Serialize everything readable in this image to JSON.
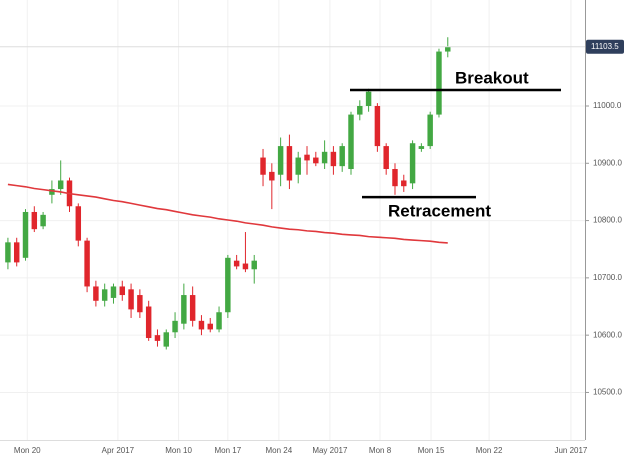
{
  "chart_data": {
    "type": "candlestick",
    "up_color": "#43a843",
    "down_color": "#e0262c",
    "open": [
      10727,
      10762,
      10735,
      10815,
      10790,
      10845,
      10855,
      10870,
      10825,
      10765,
      10685,
      10660,
      10665,
      10685,
      10680,
      10670,
      10650,
      10600,
      10580,
      10605,
      10620,
      10670,
      10625,
      10620,
      10610,
      10640,
      10730,
      10725,
      10715,
      10910,
      10885,
      10880,
      10930,
      10880,
      10915,
      10910,
      10900,
      10920,
      10895,
      10890,
      10985,
      11000,
      11000,
      10930,
      10890,
      10870,
      10865,
      10925,
      10930,
      10985,
      11095
    ],
    "high": [
      10770,
      10770,
      10820,
      10825,
      10815,
      10870,
      10905,
      10875,
      10830,
      10770,
      10695,
      10690,
      10690,
      10695,
      10690,
      10680,
      10660,
      10610,
      10610,
      10640,
      10690,
      10685,
      10635,
      10630,
      10650,
      10740,
      10740,
      10780,
      10740,
      10925,
      10900,
      10945,
      10950,
      10920,
      10930,
      10920,
      10940,
      10930,
      10935,
      10990,
      11010,
      11030,
      11005,
      10935,
      10900,
      10880,
      10940,
      10935,
      10990,
      11100,
      11120
    ],
    "low": [
      10715,
      10720,
      10730,
      10780,
      10785,
      10830,
      10845,
      10815,
      10755,
      10675,
      10650,
      10650,
      10655,
      10660,
      10630,
      10630,
      10590,
      10580,
      10575,
      10595,
      10610,
      10615,
      10600,
      10605,
      10605,
      10630,
      10715,
      10710,
      10690,
      10860,
      10820,
      10860,
      10855,
      10865,
      10880,
      10895,
      10890,
      10880,
      10885,
      10880,
      10975,
      10990,
      10920,
      10880,
      10845,
      10850,
      10855,
      10920,
      10925,
      10980,
      11085
    ],
    "close": [
      10762,
      10727,
      10815,
      10785,
      10810,
      10855,
      10870,
      10825,
      10765,
      10685,
      10660,
      10680,
      10685,
      10670,
      10645,
      10640,
      10595,
      10590,
      10605,
      10625,
      10670,
      10625,
      10610,
      10610,
      10640,
      10735,
      10720,
      10715,
      10730,
      10880,
      10870,
      10930,
      10870,
      10910,
      10905,
      10900,
      10920,
      10895,
      10930,
      10985,
      11000,
      11025,
      10930,
      10890,
      10860,
      10860,
      10935,
      10930,
      10985,
      11095,
      11103.5
    ],
    "moving_average": {
      "color": "#e0383c",
      "values": [
        10863,
        10861,
        10859,
        10856,
        10854,
        10852,
        10850,
        10847,
        10845,
        10843,
        10841,
        10838,
        10835,
        10833,
        10830,
        10827,
        10824,
        10821,
        10819,
        10816,
        10813,
        10810,
        10808,
        10806,
        10803,
        10801,
        10799,
        10796,
        10794,
        10792,
        10789,
        10787,
        10785,
        10784,
        10782,
        10781,
        10779,
        10778,
        10776,
        10775,
        10774,
        10772,
        10771,
        10770,
        10769,
        10767,
        10766,
        10765,
        10764,
        10762,
        10761
      ]
    },
    "xlim": [
      -0.9,
      65.6
    ],
    "xticks": [
      {
        "value": 2.2,
        "label": "Mon 20"
      },
      {
        "value": 12.5,
        "label": "Apr 2017"
      },
      {
        "value": 19.4,
        "label": "Mon 10"
      },
      {
        "value": 25,
        "label": "Mon 17"
      },
      {
        "value": 30.8,
        "label": "Mon 24"
      },
      {
        "value": 36.6,
        "label": "May 2017"
      },
      {
        "value": 42.3,
        "label": "Mon 8"
      },
      {
        "value": 48.1,
        "label": "Mon 15"
      },
      {
        "value": 54.7,
        "label": "Mon 22"
      },
      {
        "value": 64,
        "label": "Jun 2017"
      }
    ],
    "ylim": [
      10417,
      11185
    ],
    "yticks": [
      {
        "value": 10500,
        "label": "10500.0"
      },
      {
        "value": 10600,
        "label": "10600.0"
      },
      {
        "value": 10700,
        "label": "10700.0"
      },
      {
        "value": 10800,
        "label": "10800.0"
      },
      {
        "value": 10900,
        "label": "10900.0"
      },
      {
        "value": 11000,
        "label": "11000.0"
      }
    ],
    "grid": true,
    "annotations": [
      {
        "text": "Breakout",
        "value": 11028
      },
      {
        "text": "Retracement",
        "value": 10841
      }
    ]
  }
}
